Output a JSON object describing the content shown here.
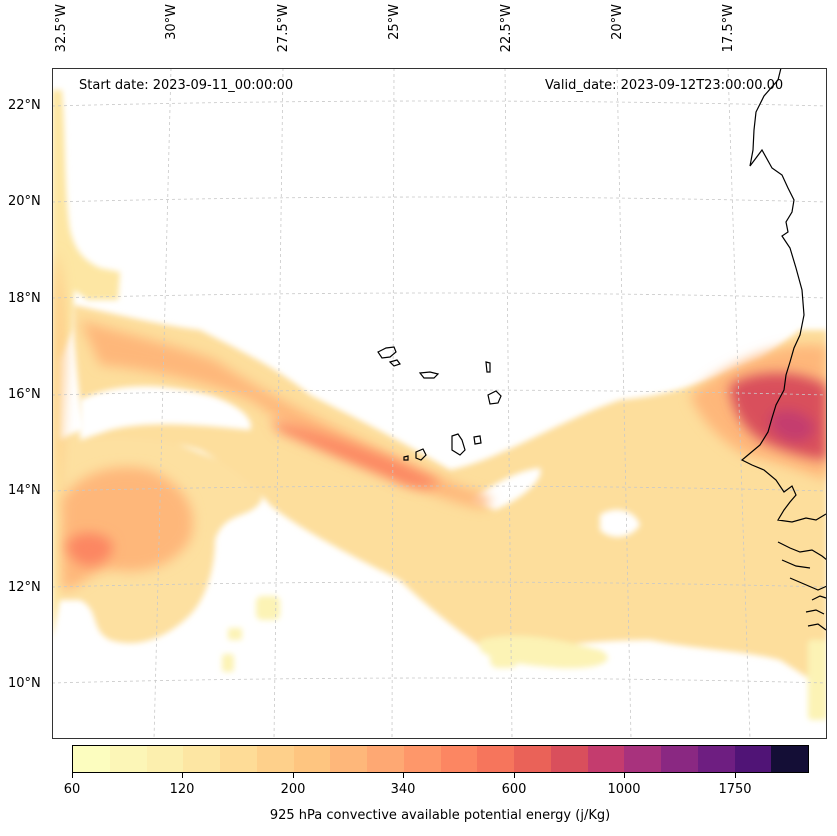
{
  "map": {
    "lon_labels": [
      "32.5°W",
      "30°W",
      "27.5°W",
      "25°W",
      "22.5°W",
      "20°W",
      "17.5°W"
    ],
    "lat_labels": [
      "22°N",
      "20°N",
      "18°N",
      "16°N",
      "14°N",
      "12°N",
      "10°N"
    ],
    "start_date": "Start date: 2023-09-11_00:00:00",
    "valid_date": "Valid_date: 2023-09-12T23:00:00.00",
    "gridlines": true,
    "coastline_color": "#000000"
  },
  "colorbar": {
    "label": "925 hPa convective available potential energy (j/Kg)",
    "ticks": [
      "60",
      "120",
      "200",
      "340",
      "600",
      "1000",
      "1750"
    ],
    "colors": [
      "#fcfdbf",
      "#fcf6b7",
      "#fcefae",
      "#fde6a3",
      "#fedc97",
      "#fed08b",
      "#fec580",
      "#feb77a",
      "#fea873",
      "#fe976a",
      "#fc8662",
      "#f6755c",
      "#ea6258",
      "#d94f5c",
      "#c43c6e",
      "#a8327d",
      "#8a2882",
      "#6e1e81",
      "#501476",
      "#140e36"
    ]
  }
}
